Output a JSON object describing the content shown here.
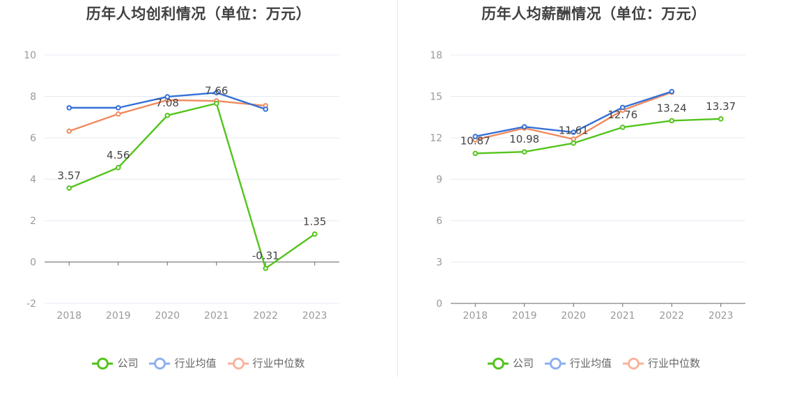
{
  "charts": [
    {
      "title": "历年人均创利情况（单位：万元）",
      "legend": [
        "公司",
        "行业均值",
        "行业中位数"
      ]
    },
    {
      "title": "历年人均薪酬情况（单位：万元）",
      "legend": [
        "公司",
        "行业均值",
        "行业中位数"
      ]
    }
  ],
  "colors": {
    "company": "#52c41a",
    "avg": "#3470d8",
    "median": "#f08a5d",
    "avg_legend": "#8db0f0",
    "median_legend": "#f7b59d",
    "axis": "#666666",
    "grid": "#e6e9f0",
    "tick": "#999999"
  },
  "chart_data": [
    {
      "type": "line",
      "title": "历年人均创利情况（单位：万元）",
      "categories": [
        "2018",
        "2019",
        "2020",
        "2021",
        "2022",
        "2023"
      ],
      "ylim": [
        -2,
        10
      ],
      "yticks": [
        -2,
        0,
        2,
        4,
        6,
        8,
        10
      ],
      "grid": true,
      "legend_position": "bottom",
      "series": [
        {
          "name": "公司",
          "values": [
            3.57,
            4.56,
            7.08,
            7.66,
            -0.31,
            1.35
          ],
          "labels": [
            "3.57",
            "4.56",
            "7.08",
            "7.66",
            "-0.31",
            "1.35"
          ]
        },
        {
          "name": "行业均值",
          "values": [
            7.45,
            7.45,
            7.98,
            8.18,
            7.38,
            null
          ]
        },
        {
          "name": "行业中位数",
          "values": [
            6.32,
            7.15,
            7.82,
            7.78,
            7.55,
            null
          ]
        }
      ]
    },
    {
      "type": "line",
      "title": "历年人均薪酬情况（单位：万元）",
      "categories": [
        "2018",
        "2019",
        "2020",
        "2021",
        "2022",
        "2023"
      ],
      "ylim": [
        0,
        18
      ],
      "yticks": [
        0,
        3,
        6,
        9,
        12,
        15,
        18
      ],
      "grid": true,
      "legend_position": "bottom",
      "series": [
        {
          "name": "公司",
          "values": [
            10.87,
            10.98,
            11.61,
            12.76,
            13.24,
            13.37
          ],
          "labels": [
            "10.87",
            "10.98",
            "11.61",
            "12.76",
            "13.24",
            "13.37"
          ]
        },
        {
          "name": "行业均值",
          "values": [
            12.1,
            12.8,
            12.4,
            14.2,
            15.35,
            null
          ]
        },
        {
          "name": "行业中位数",
          "values": [
            11.85,
            12.7,
            11.9,
            14.0,
            15.3,
            null
          ]
        }
      ]
    }
  ]
}
